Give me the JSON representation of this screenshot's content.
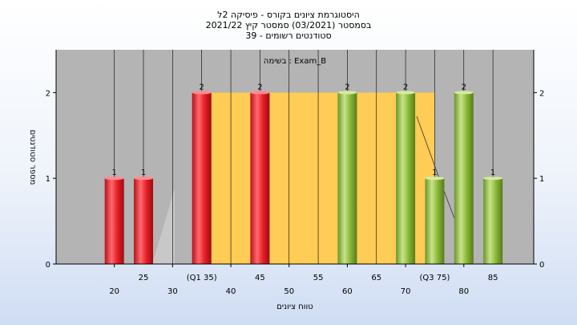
{
  "chart_data": {
    "type": "bar",
    "title_lines": [
      "היסטוגרמת ציונים בקורס - פיסיקה 2ל",
      "בסמסטר  (03/2021)  סמסטר קיץ 2021/22",
      "סטודנטים רשומים - 39"
    ],
    "legend_text": "בשימה : Exam_B",
    "xlabel": "טווח ציונים",
    "ylabel": "מספר סטודנטים",
    "ylim": [
      0,
      2.5
    ],
    "y_ticks": [
      0,
      1,
      2
    ],
    "x_ticks_top": [
      "25",
      "(Q1 35)",
      "45",
      "55",
      "65",
      "(Q3 75)",
      "85"
    ],
    "x_ticks_bottom": [
      "20",
      "30",
      "40",
      "50",
      "60",
      "70",
      "80"
    ],
    "bars": [
      {
        "x": 20,
        "value": 1,
        "label": "1",
        "color": "red"
      },
      {
        "x": 25,
        "value": 1,
        "label": "1",
        "color": "red"
      },
      {
        "x": 35,
        "value": 2,
        "label": "2",
        "color": "red"
      },
      {
        "x": 45,
        "value": 2,
        "label": "2",
        "color": "red"
      },
      {
        "x": 60,
        "value": 2,
        "label": "2",
        "color": "green"
      },
      {
        "x": 70,
        "value": 2,
        "label": "2",
        "color": "green"
      },
      {
        "x": 75,
        "value": 1,
        "label": "1",
        "color": "green"
      },
      {
        "x": 80,
        "value": 2,
        "label": "2",
        "color": "green"
      },
      {
        "x": 85,
        "value": 1,
        "label": "1",
        "color": "green"
      }
    ],
    "iqr_range": [
      35,
      75
    ],
    "colors": {
      "plot_bg": "#b4b4b4",
      "iqr_fill": "#ffcc55",
      "red_bar": "#e82028",
      "green_bar": "#8ab838"
    }
  }
}
